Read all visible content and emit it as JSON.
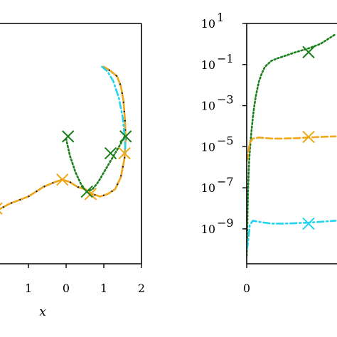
{
  "chart_data": [
    {
      "type": "line",
      "xlabel": "x",
      "ylabel": "",
      "xlim": [
        -1.85,
        2.0
      ],
      "ylim": [
        0,
        1
      ],
      "x_ticks": [
        {
          "value": -1,
          "label": "1"
        },
        {
          "value": 0,
          "label": "0"
        },
        {
          "value": 1,
          "label": "1"
        },
        {
          "value": 2,
          "label": "2"
        }
      ],
      "grid": false,
      "series": [
        {
          "style": "solid",
          "color": "#000000",
          "x": [
            -1.85,
            -1.5,
            -1.0,
            -0.6,
            -0.3,
            -0.1,
            0.1,
            0.3,
            0.5,
            0.7,
            0.9,
            1.1,
            1.3,
            1.45,
            1.55,
            1.58,
            1.56,
            1.52,
            1.45,
            1.35,
            1.2,
            1.0
          ],
          "y": [
            0.22,
            0.25,
            0.28,
            0.32,
            0.34,
            0.35,
            0.34,
            0.32,
            0.31,
            0.29,
            0.28,
            0.29,
            0.31,
            0.36,
            0.44,
            0.52,
            0.6,
            0.68,
            0.74,
            0.78,
            0.8,
            0.82
          ]
        },
        {
          "style": "dashed",
          "color": "#f0a818",
          "x": [
            -1.85,
            -1.5,
            -1.0,
            -0.6,
            -0.3,
            -0.1,
            0.1,
            0.3,
            0.5,
            0.7,
            0.9,
            1.1,
            1.3,
            1.45,
            1.55,
            1.58,
            1.56,
            1.52,
            1.45,
            1.35,
            1.2,
            1.0
          ],
          "y": [
            0.22,
            0.25,
            0.28,
            0.32,
            0.34,
            0.35,
            0.34,
            0.32,
            0.31,
            0.29,
            0.28,
            0.29,
            0.31,
            0.36,
            0.44,
            0.52,
            0.6,
            0.68,
            0.74,
            0.78,
            0.8,
            0.82
          ],
          "markers": [
            {
              "x": -1.85,
              "y": 0.23
            },
            {
              "x": -0.1,
              "y": 0.35
            },
            {
              "x": 0.65,
              "y": 0.29
            },
            {
              "x": 1.55,
              "y": 0.46
            }
          ]
        },
        {
          "style": "dashdot",
          "color": "#22d3ee",
          "x": [
            0.95,
            1.1,
            1.25,
            1.4,
            1.5,
            1.56,
            1.58
          ],
          "y": [
            0.82,
            0.8,
            0.76,
            0.69,
            0.61,
            0.52,
            0.45
          ]
        },
        {
          "style": "dotted",
          "color": "#1a7f1a",
          "x": [
            0.0,
            0.1,
            0.25,
            0.4,
            0.55,
            0.7,
            0.85,
            1.0,
            1.15,
            1.3,
            1.45,
            1.55
          ],
          "y": [
            0.52,
            0.45,
            0.38,
            0.33,
            0.3,
            0.31,
            0.34,
            0.38,
            0.42,
            0.46,
            0.5,
            0.53
          ],
          "markers": [
            {
              "x": 0.05,
              "y": 0.53
            },
            {
              "x": 0.55,
              "y": 0.3
            },
            {
              "x": 1.18,
              "y": 0.46
            },
            {
              "x": 1.58,
              "y": 0.53
            }
          ]
        }
      ]
    },
    {
      "type": "line",
      "xlabel": "",
      "ylabel": "",
      "yscale": "log",
      "xlim": [
        0,
        1.45
      ],
      "ylim": [
        2e-11,
        10
      ],
      "x_ticks": [
        {
          "value": 0,
          "label": "0"
        }
      ],
      "y_ticks": [
        {
          "exp": 1,
          "base": "10",
          "sup": "1"
        },
        {
          "exp": -1,
          "base": "10",
          "sup": "−1"
        },
        {
          "exp": -3,
          "base": "10",
          "sup": "−3"
        },
        {
          "exp": -5,
          "base": "10",
          "sup": "−5"
        },
        {
          "exp": -7,
          "base": "10",
          "sup": "−7"
        },
        {
          "exp": -9,
          "base": "10",
          "sup": "−9"
        }
      ],
      "grid": false,
      "series": [
        {
          "style": "dotted",
          "color": "#1a7f1a",
          "x": [
            0.0,
            0.02,
            0.04,
            0.06,
            0.08,
            0.1,
            0.12,
            0.15,
            0.2,
            0.25,
            0.3,
            0.4,
            0.5,
            0.6,
            0.8,
            1.0,
            1.2,
            1.45
          ],
          "y": [
            5e-11,
            5e-08,
            2e-06,
            1.5e-05,
            7e-05,
            0.00025,
            0.0008,
            0.003,
            0.015,
            0.04,
            0.08,
            0.15,
            0.2,
            0.25,
            0.4,
            0.6,
            1.0,
            3.0
          ],
          "markers": [
            {
              "x": 1.45,
              "y": 0.4
            }
          ]
        },
        {
          "style": "dashed",
          "color": "#f0a818",
          "x": [
            0.0,
            0.02,
            0.05,
            0.1,
            0.2,
            0.4,
            0.6,
            0.8,
            1.0,
            1.2,
            1.45
          ],
          "y": [
            2e-06,
            4e-06,
            1.5e-05,
            2.5e-05,
            2.8e-05,
            2.5e-05,
            2.5e-05,
            2.6e-05,
            2.8e-05,
            3e-05,
            3.2e-05
          ],
          "markers": [
            {
              "x": 1.45,
              "y": 3e-05
            }
          ]
        },
        {
          "style": "dashdot",
          "color": "#22d3ee",
          "x": [
            0.0,
            0.02,
            0.05,
            0.1,
            0.2,
            0.4,
            0.6,
            0.8,
            1.0,
            1.2,
            1.45
          ],
          "y": [
            1e-10,
            2e-10,
            1.5e-09,
            2.5e-09,
            2.2e-09,
            1.8e-09,
            1.8e-09,
            1.9e-09,
            2e-09,
            2.2e-09,
            2.5e-09
          ],
          "markers": [
            {
              "x": 1.45,
              "y": 1.8e-09
            }
          ]
        }
      ]
    }
  ]
}
